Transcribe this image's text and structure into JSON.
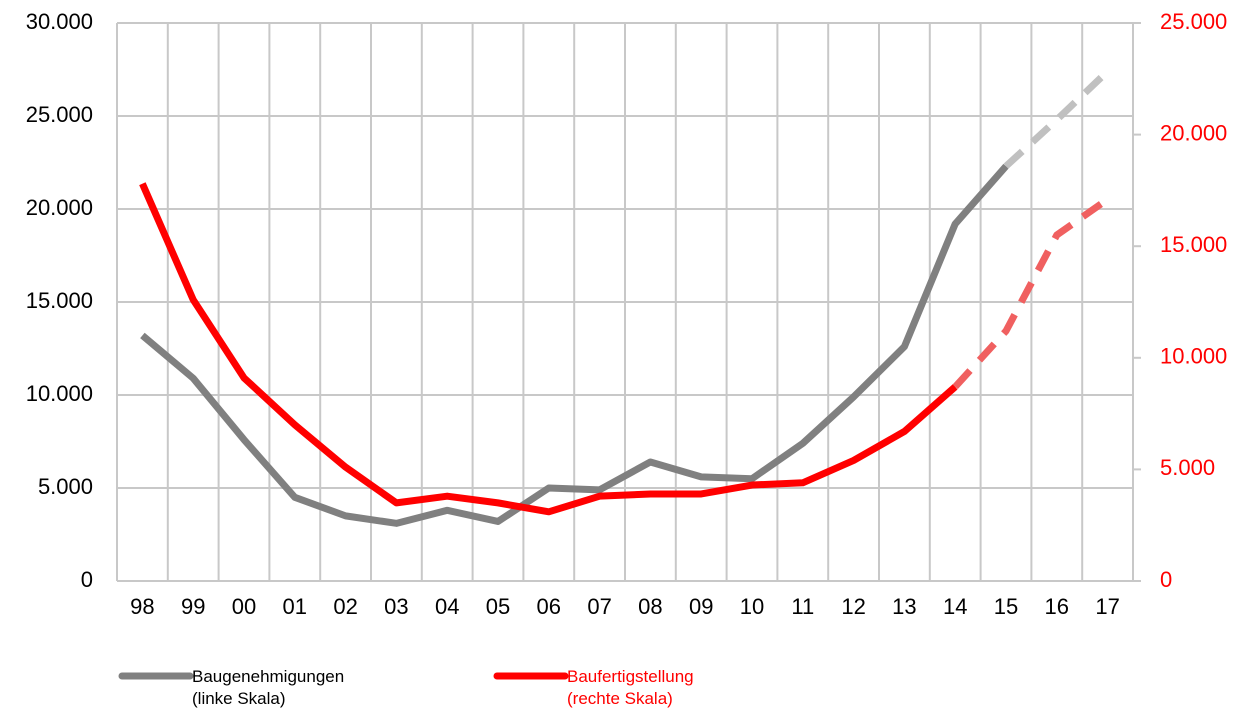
{
  "chart_data": {
    "type": "line",
    "categories": [
      "98",
      "99",
      "00",
      "01",
      "02",
      "03",
      "04",
      "05",
      "06",
      "07",
      "08",
      "09",
      "10",
      "11",
      "12",
      "13",
      "14",
      "15",
      "16",
      "17"
    ],
    "series": [
      {
        "name": "Baugenehmigungen (linke Skala)",
        "color": "#808080",
        "projected_color": "#c0c0c0",
        "projected_from": "15",
        "axis": "y",
        "values": [
          13200,
          10900,
          7600,
          4500,
          3500,
          3100,
          3800,
          3200,
          5000,
          4900,
          6400,
          5600,
          5500,
          7400,
          9900,
          12600,
          19200,
          22300,
          24800,
          27400
        ]
      },
      {
        "name": "Baufertigstellung (rechte Skala)",
        "color": "#ff0000",
        "projected_color": "#f06060",
        "projected_from": "14",
        "axis": "y2",
        "values": [
          17800,
          12600,
          9100,
          7000,
          5100,
          3500,
          3800,
          3500,
          3100,
          3800,
          3900,
          3900,
          4300,
          4400,
          5400,
          6700,
          8700,
          11200,
          15500,
          17100
        ]
      }
    ],
    "ylim": [
      0,
      30000
    ],
    "yticks": [
      0,
      {
        "value": 5000,
        "label": "5.000"
      },
      {
        "value": 10000,
        "label": "10.000"
      },
      {
        "value": 15000,
        "label": "15.000"
      },
      {
        "value": 20000,
        "label": "20.000"
      },
      {
        "value": 25000,
        "label": "25.000"
      },
      {
        "value": 30000,
        "label": "30.000"
      }
    ],
    "y2lim": [
      0,
      25000
    ],
    "y2ticks": [
      0,
      {
        "value": 5000,
        "label": "5.000"
      },
      {
        "value": 10000,
        "label": "10.000"
      },
      {
        "value": 15000,
        "label": "15.000"
      },
      {
        "value": 20000,
        "label": "20.000"
      },
      {
        "value": 25000,
        "label": "25.000"
      }
    ],
    "y2_color": "#ff0000",
    "grid": true,
    "legend": "bottom"
  }
}
